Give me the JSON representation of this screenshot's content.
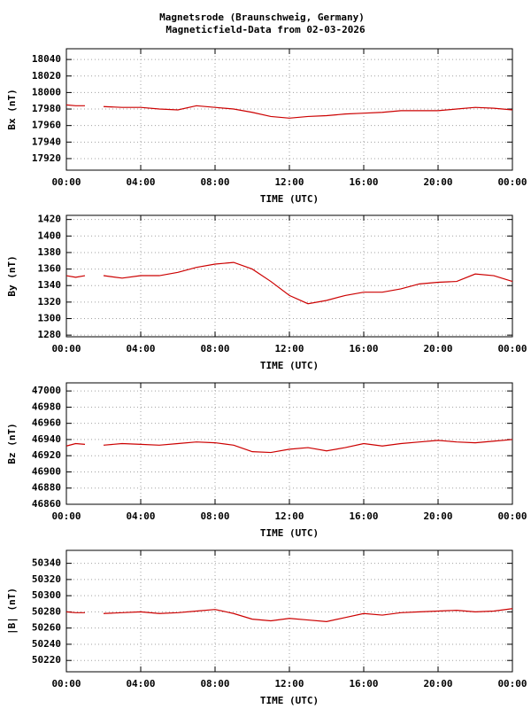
{
  "chart_data": [
    {
      "type": "line",
      "title": "Magnetsrode (Braunschweig, Germany)",
      "subtitle": "Magneticfield-Data from 02-03-2026",
      "ylabel": "Bx (nT)",
      "xlabel": "TIME (UTC)",
      "color": "#cc0000",
      "grid": true,
      "x": [
        0,
        0.5,
        1,
        1.5,
        2,
        3,
        4,
        5,
        6,
        7,
        8,
        9,
        10,
        11,
        12,
        13,
        14,
        15,
        16,
        17,
        18,
        19,
        20,
        21,
        22,
        23,
        24
      ],
      "values": [
        17985,
        17984,
        17984,
        null,
        17983,
        17982,
        17982,
        17980,
        17979,
        17984,
        17982,
        17980,
        17976,
        17971,
        17969,
        17971,
        17972,
        17974,
        17975,
        17976,
        17978,
        17978,
        17978,
        17980,
        17982,
        17981,
        17979
      ],
      "xlim": [
        0,
        24
      ],
      "xticks": [
        {
          "value": 0,
          "label": "00:00"
        },
        {
          "value": 4,
          "label": "04:00"
        },
        {
          "value": 8,
          "label": "08:00"
        },
        {
          "value": 12,
          "label": "12:00"
        },
        {
          "value": 16,
          "label": "16:00"
        },
        {
          "value": 20,
          "label": "20:00"
        },
        {
          "value": 24,
          "label": "00:00"
        }
      ],
      "ylim": [
        17906,
        18053
      ],
      "yticks": [
        17920,
        17940,
        17960,
        17980,
        18000,
        18020,
        18040
      ]
    },
    {
      "type": "line",
      "ylabel": "By (nT)",
      "xlabel": "TIME (UTC)",
      "color": "#cc0000",
      "grid": true,
      "x": [
        0,
        0.5,
        1,
        1.5,
        2,
        3,
        4,
        5,
        6,
        7,
        8,
        9,
        10,
        11,
        12,
        13,
        14,
        15,
        16,
        17,
        18,
        19,
        20,
        21,
        22,
        23,
        24
      ],
      "values": [
        1352,
        1350,
        1352,
        null,
        1352,
        1349,
        1352,
        1352,
        1356,
        1362,
        1366,
        1368,
        1360,
        1345,
        1328,
        1318,
        1322,
        1328,
        1332,
        1332,
        1336,
        1342,
        1344,
        1345,
        1354,
        1352,
        1345
      ],
      "xlim": [
        0,
        24
      ],
      "xticks": [
        {
          "value": 0,
          "label": "00:00"
        },
        {
          "value": 4,
          "label": "04:00"
        },
        {
          "value": 8,
          "label": "08:00"
        },
        {
          "value": 12,
          "label": "12:00"
        },
        {
          "value": 16,
          "label": "16:00"
        },
        {
          "value": 20,
          "label": "20:00"
        },
        {
          "value": 24,
          "label": "00:00"
        }
      ],
      "ylim": [
        1278,
        1425
      ],
      "yticks": [
        1280,
        1300,
        1320,
        1340,
        1360,
        1380,
        1400,
        1420
      ]
    },
    {
      "type": "line",
      "ylabel": "Bz (nT)",
      "xlabel": "TIME (UTC)",
      "color": "#cc0000",
      "grid": true,
      "x": [
        0,
        0.5,
        1,
        1.5,
        2,
        3,
        4,
        5,
        6,
        7,
        8,
        9,
        10,
        11,
        12,
        13,
        14,
        15,
        16,
        17,
        18,
        19,
        20,
        21,
        22,
        23,
        24
      ],
      "values": [
        46932,
        46935,
        46934,
        null,
        46933,
        46935,
        46934,
        46933,
        46935,
        46937,
        46936,
        46933,
        46925,
        46924,
        46928,
        46930,
        46926,
        46930,
        46935,
        46932,
        46935,
        46937,
        46939,
        46937,
        46936,
        46938,
        46940
      ],
      "xlim": [
        0,
        24
      ],
      "xticks": [
        {
          "value": 0,
          "label": "00:00"
        },
        {
          "value": 4,
          "label": "04:00"
        },
        {
          "value": 8,
          "label": "08:00"
        },
        {
          "value": 12,
          "label": "12:00"
        },
        {
          "value": 16,
          "label": "16:00"
        },
        {
          "value": 20,
          "label": "20:00"
        },
        {
          "value": 24,
          "label": "00:00"
        }
      ],
      "ylim": [
        46860,
        47010
      ],
      "yticks": [
        46860,
        46880,
        46900,
        46920,
        46940,
        46960,
        46980,
        47000
      ]
    },
    {
      "type": "line",
      "ylabel": "|B| (nT)",
      "xlabel": "TIME (UTC)",
      "color": "#cc0000",
      "grid": true,
      "x": [
        0,
        0.5,
        1,
        1.5,
        2,
        3,
        4,
        5,
        6,
        7,
        8,
        9,
        10,
        11,
        12,
        13,
        14,
        15,
        16,
        17,
        18,
        19,
        20,
        21,
        22,
        23,
        24
      ],
      "values": [
        50280,
        50279,
        50279,
        null,
        50278,
        50279,
        50280,
        50278,
        50279,
        50281,
        50283,
        50278,
        50271,
        50269,
        50272,
        50270,
        50268,
        50273,
        50278,
        50276,
        50279,
        50280,
        50281,
        50282,
        50280,
        50281,
        50284
      ],
      "xlim": [
        0,
        24
      ],
      "xticks": [
        {
          "value": 0,
          "label": "00:00"
        },
        {
          "value": 4,
          "label": "04:00"
        },
        {
          "value": 8,
          "label": "08:00"
        },
        {
          "value": 12,
          "label": "12:00"
        },
        {
          "value": 16,
          "label": "16:00"
        },
        {
          "value": 20,
          "label": "20:00"
        },
        {
          "value": 24,
          "label": "00:00"
        }
      ],
      "ylim": [
        50206,
        50356
      ],
      "yticks": [
        50220,
        50240,
        50260,
        50280,
        50300,
        50320,
        50340
      ]
    }
  ]
}
